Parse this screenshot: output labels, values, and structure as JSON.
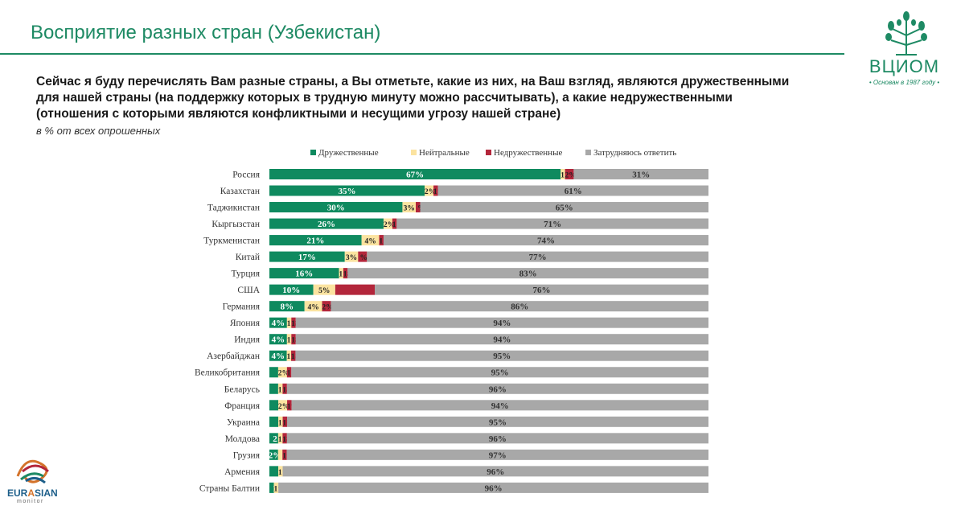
{
  "header": {
    "title": "Восприятие разных стран (Узбекистан)"
  },
  "question": {
    "lines": [
      "Сейчас я буду перечислять Вам разные страны, а Вы отметьте, какие из них, на Ваш взгляд, являются дружественными",
      "для нашей страны (на поддержку которых в трудную минуту можно рассчитывать), а какие недружественными",
      "(отношения с которыми являются конфликтными и несущими угрозу нашей стране)"
    ],
    "subtitle": "в % от всех опрошенных"
  },
  "logo": {
    "name": "ВЦИОМ",
    "tagline": "• Основан в 1987 году •"
  },
  "eurasian": {
    "name_prefix": "EUR",
    "name_highlight": "A",
    "name_suffix": "SIAN",
    "sub": "monitor"
  },
  "colors": {
    "friendly": "#0f8a5f",
    "neutral": "#fbe3a0",
    "unfriendly": "#b3263b",
    "unsure": "#a8a8a8",
    "brand": "#1e8a64"
  },
  "chart_data": {
    "type": "bar",
    "orientation": "horizontal-stacked",
    "unit": "%",
    "legend": [
      "Дружественные",
      "Нейтральные",
      "Недружественные",
      "Затрудняюсь ответить"
    ],
    "legend_position": "top",
    "categories": [
      "Россия",
      "Казахстан",
      "Таджикистан",
      "Кыргызстан",
      "Туркменистан",
      "Китай",
      "Турция",
      "США",
      "Германия",
      "Япония",
      "Индия",
      "Азербайджан",
      "Великобритания",
      "Беларусь",
      "Франция",
      "Украина",
      "Молдова",
      "Грузия",
      "Армения",
      "Страны Балтии"
    ],
    "series": [
      {
        "name": "Дружественные",
        "values": [
          67,
          35,
          30,
          26,
          21,
          17,
          16,
          10,
          8,
          4,
          4,
          4,
          2,
          2,
          2,
          2,
          2,
          2,
          2,
          1
        ]
      },
      {
        "name": "Нейтральные",
        "values": [
          1,
          2,
          3,
          2,
          4,
          3,
          1,
          5,
          4,
          1,
          1,
          1,
          2,
          1,
          2,
          1,
          1,
          1,
          1,
          1
        ]
      },
      {
        "name": "Недружественные",
        "values": [
          2,
          1,
          1,
          1,
          1,
          2,
          1,
          9,
          2,
          1,
          1,
          1,
          1,
          1,
          1,
          1,
          1,
          1,
          0,
          0
        ]
      },
      {
        "name": "Затрудняюсь ответить",
        "values": [
          31,
          61,
          65,
          71,
          74,
          77,
          83,
          76,
          86,
          94,
          94,
          95,
          95,
          96,
          94,
          95,
          96,
          97,
          96,
          96
        ]
      }
    ],
    "labels": [
      [
        "67%",
        "1%",
        "2%",
        "31%"
      ],
      [
        "35%",
        "2%",
        "1%",
        "61%"
      ],
      [
        "30%",
        "3%",
        "%",
        "65%"
      ],
      [
        "26%",
        "2%",
        "1%",
        "71%"
      ],
      [
        "21%",
        "4%",
        "1%",
        "74%"
      ],
      [
        "17%",
        "3%",
        "%",
        "77%"
      ],
      [
        "16%",
        "1%",
        "1%",
        "83%"
      ],
      [
        "10%",
        "5%",
        "",
        "76%"
      ],
      [
        "8%",
        "4%",
        "2%",
        "86%"
      ],
      [
        "4%",
        "1%",
        "1%",
        "94%"
      ],
      [
        "4%",
        "1%",
        "1%",
        "94%"
      ],
      [
        "4%",
        "1%",
        "1%",
        "95%"
      ],
      [
        "",
        "2%",
        "1%",
        "95%"
      ],
      [
        "",
        "1%",
        "1%",
        "96%"
      ],
      [
        "",
        "2%",
        "1%",
        "94%"
      ],
      [
        "",
        "1%",
        "1%",
        "95%"
      ],
      [
        "2",
        "1%",
        "1%",
        "96%"
      ],
      [
        "2%",
        "",
        "1%",
        "97%"
      ],
      [
        "",
        "1%",
        "",
        "96%"
      ],
      [
        "1",
        "1%",
        "",
        "96%"
      ]
    ],
    "xlim": [
      0,
      100
    ]
  }
}
